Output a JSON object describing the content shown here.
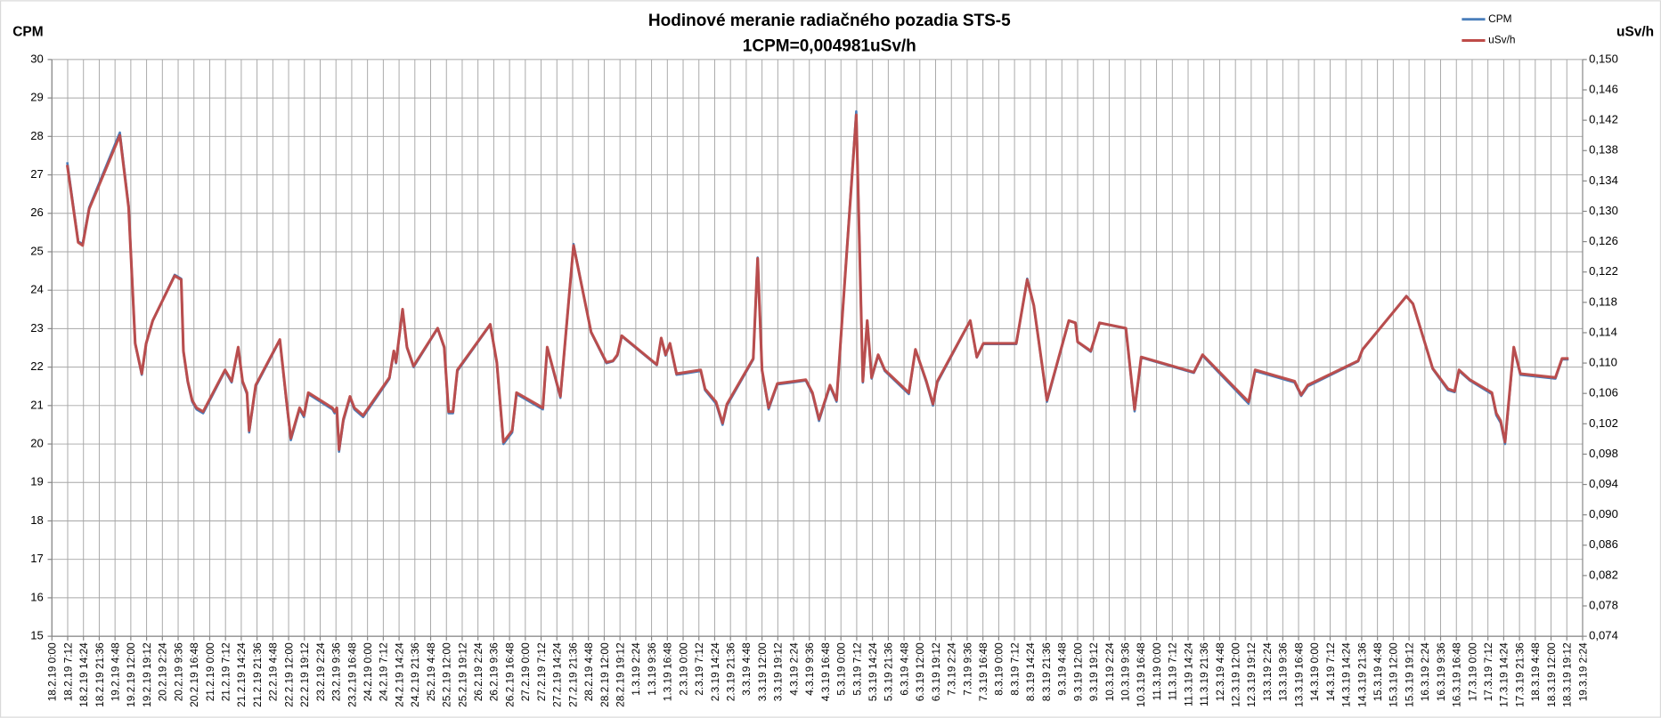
{
  "chart_data": {
    "type": "line",
    "title": "Hodinové meranie radiačného pozadia STS-5",
    "subtitle": "1CPM=0,004981uSv/h",
    "y_label": "CPM",
    "y2_label": "uSv/h",
    "legend": "top-right",
    "grid": true,
    "xlim": [
      "18.2.19 0:00",
      "19.3.19 2:24"
    ],
    "xticks": [
      "18.2.19 0:00",
      "18.2.19 7:12",
      "18.2.19 14:24",
      "18.2.19 21:36",
      "19.2.19 4:48",
      "19.2.19 12:00",
      "19.2.19 19:12",
      "20.2.19 2:24",
      "20.2.19 9:36",
      "20.2.19 16:48",
      "21.2.19 0:00",
      "21.2.19 7:12",
      "21.2.19 14:24",
      "21.2.19 21:36",
      "22.2.19 4:48",
      "22.2.19 12:00",
      "22.2.19 19:12",
      "23.2.19 2:24",
      "23.2.19 9:36",
      "23.2.19 16:48",
      "24.2.19 0:00",
      "24.2.19 7:12",
      "24.2.19 14:24",
      "24.2.19 21:36",
      "25.2.19 4:48",
      "25.2.19 12:00",
      "25.2.19 19:12",
      "26.2.19 2:24",
      "26.2.19 9:36",
      "26.2.19 16:48",
      "27.2.19 0:00",
      "27.2.19 7:12",
      "27.2.19 14:24",
      "27.2.19 21:36",
      "28.2.19 4:48",
      "28.2.19 12:00",
      "28.2.19 19:12",
      "1.3.19 2:24",
      "1.3.19 9:36",
      "1.3.19 16:48",
      "2.3.19 0:00",
      "2.3.19 7:12",
      "2.3.19 14:24",
      "2.3.19 21:36",
      "3.3.19 4:48",
      "3.3.19 12:00",
      "3.3.19 19:12",
      "4.3.19 2:24",
      "4.3.19 9:36",
      "4.3.19 16:48",
      "5.3.19 0:00",
      "5.3.19 7:12",
      "5.3.19 14:24",
      "5.3.19 21:36",
      "6.3.19 4:48",
      "6.3.19 12:00",
      "6.3.19 19:12",
      "7.3.19 2:24",
      "7.3.19 9:36",
      "7.3.19 16:48",
      "8.3.19 0:00",
      "8.3.19 7:12",
      "8.3.19 14:24",
      "8.3.19 21:36",
      "9.3.19 4:48",
      "9.3.19 12:00",
      "9.3.19 19:12",
      "10.3.19 2:24",
      "10.3.19 9:36",
      "10.3.19 16:48",
      "11.3.19 0:00",
      "11.3.19 7:12",
      "11.3.19 14:24",
      "11.3.19 21:36",
      "12.3.19 4:48",
      "12.3.19 12:00",
      "12.3.19 19:12",
      "13.3.19 2:24",
      "13.3.19 9:36",
      "13.3.19 16:48",
      "14.3.19 0:00",
      "14.3.19 7:12",
      "14.3.19 14:24",
      "14.3.19 21:36",
      "15.3.19 4:48",
      "15.3.19 12:00",
      "15.3.19 19:12",
      "16.3.19 2:24",
      "16.3.19 9:36",
      "16.3.19 16:48",
      "17.3.19 0:00",
      "17.3.19 7:12",
      "17.3.19 14:24",
      "17.3.19 21:36",
      "18.3.19 4:48",
      "18.3.19 12:00",
      "18.3.19 19:12",
      "19.3.19 2:24"
    ],
    "ylim": [
      15,
      30
    ],
    "yticks": [
      15,
      16,
      17,
      18,
      19,
      20,
      21,
      22,
      23,
      24,
      25,
      26,
      27,
      28,
      29,
      30
    ],
    "y2lim": [
      0.074,
      0.15
    ],
    "y2ticks": [
      {
        "value": 0.074,
        "label": "0,074"
      },
      {
        "value": 0.078,
        "label": "0,078"
      },
      {
        "value": 0.082,
        "label": "0,082"
      },
      {
        "value": 0.086,
        "label": "0,086"
      },
      {
        "value": 0.09,
        "label": "0,090"
      },
      {
        "value": 0.094,
        "label": "0,094"
      },
      {
        "value": 0.098,
        "label": "0,098"
      },
      {
        "value": 0.102,
        "label": "0,102"
      },
      {
        "value": 0.106,
        "label": "0,106"
      },
      {
        "value": 0.11,
        "label": "0,110"
      },
      {
        "value": 0.114,
        "label": "0,114"
      },
      {
        "value": 0.118,
        "label": "0,118"
      },
      {
        "value": 0.122,
        "label": "0,122"
      },
      {
        "value": 0.126,
        "label": "0,126"
      },
      {
        "value": 0.13,
        "label": "0,130"
      },
      {
        "value": 0.134,
        "label": "0,134"
      },
      {
        "value": 0.138,
        "label": "0,138"
      },
      {
        "value": 0.142,
        "label": "0,142"
      },
      {
        "value": 0.146,
        "label": "0,146"
      },
      {
        "value": 0.15,
        "label": "0,150"
      }
    ],
    "x": [
      "18.2.19 7:00",
      "18.2.19 12:00",
      "18.2.19 14:00",
      "18.2.19 17:00",
      "19.2.19 7:00",
      "19.2.19 11:00",
      "19.2.19 14:00",
      "19.2.19 17:00",
      "19.2.19 19:00",
      "19.2.19 22:00",
      "20.2.19 8:00",
      "20.2.19 11:00",
      "20.2.19 12:00",
      "20.2.19 14:00",
      "20.2.19 16:00",
      "20.2.19 18:00",
      "20.2.19 21:00",
      "21.2.19 7:00",
      "21.2.19 10:00",
      "21.2.19 13:00",
      "21.2.19 15:00",
      "21.2.19 17:00",
      "21.2.19 18:00",
      "21.2.19 21:00",
      "22.2.19 8:00",
      "22.2.19 11:00",
      "22.2.19 13:00",
      "22.2.19 17:00",
      "22.2.19 19:00",
      "22.2.19 21:00",
      "23.2.19 8:00",
      "23.2.19 9:00",
      "23.2.19 10:00",
      "23.2.19 11:00",
      "23.2.19 13:00",
      "23.2.19 16:00",
      "23.2.19 18:00",
      "23.2.19 22:00",
      "24.2.19 10:00",
      "24.2.19 12:00",
      "24.2.19 13:00",
      "24.2.19 16:00",
      "24.2.19 18:00",
      "24.2.19 21:00",
      "25.2.19 8:00",
      "25.2.19 11:00",
      "25.2.19 13:00",
      "25.2.19 15:00",
      "25.2.19 17:00",
      "26.2.19 8:00",
      "26.2.19 11:00",
      "26.2.19 14:00",
      "26.2.19 18:00",
      "26.2.19 20:00",
      "27.2.19 8:00",
      "27.2.19 10:00",
      "27.2.19 16:00",
      "27.2.19 22:00",
      "28.2.19 6:00",
      "28.2.19 13:00",
      "28.2.19 16:00",
      "28.2.19 18:00",
      "28.2.19 20:00",
      "1.3.19 12:00",
      "1.3.19 14:00",
      "1.3.19 16:00",
      "1.3.19 18:00",
      "1.3.19 21:00",
      "2.3.19 8:00",
      "2.3.19 10:00",
      "2.3.19 15:00",
      "2.3.19 18:00",
      "2.3.19 20:00",
      "3.3.19 8:00",
      "3.3.19 10:00",
      "3.3.19 12:00",
      "3.3.19 15:00",
      "3.3.19 19:00",
      "4.3.19 8:00",
      "4.3.19 11:00",
      "4.3.19 14:00",
      "4.3.19 19:00",
      "4.3.19 22:00",
      "5.3.19 7:00",
      "5.3.19 10:00",
      "5.3.19 12:00",
      "5.3.19 14:00",
      "5.3.19 17:00",
      "5.3.19 20:00",
      "6.3.19 7:00",
      "6.3.19 10:00",
      "6.3.19 15:00",
      "6.3.19 18:00",
      "6.3.19 20:00",
      "7.3.19 11:00",
      "7.3.19 14:00",
      "7.3.19 17:00",
      "8.3.19 8:00",
      "8.3.19 13:00",
      "8.3.19 16:00",
      "8.3.19 20:00",
      "8.3.19 22:00",
      "9.3.19 8:00",
      "9.3.19 11:00",
      "9.3.19 12:00",
      "9.3.19 18:00",
      "9.3.19 22:00",
      "10.3.19 10:00",
      "10.3.19 14:00",
      "10.3.19 17:00",
      "11.3.19 17:00",
      "11.3.19 21:00",
      "12.3.19 18:00",
      "12.3.19 21:00",
      "13.3.19 15:00",
      "13.3.19 18:00",
      "13.3.19 21:00",
      "14.3.19 20:00",
      "14.3.19 22:00",
      "15.3.19 18:00",
      "15.3.19 21:00",
      "16.3.19 6:00",
      "16.3.19 13:00",
      "16.3.19 16:00",
      "16.3.19 18:00",
      "16.3.19 23:00",
      "17.3.19 9:00",
      "17.3.19 11:00",
      "17.3.19 13:00",
      "17.3.19 15:00",
      "17.3.19 19:00",
      "17.3.19 22:00",
      "18.3.19 14:00",
      "18.3.19 17:00",
      "18.3.19 20:00"
    ],
    "series": [
      {
        "name": "CPM",
        "color": "#4a7ebb",
        "values": [
          27.33,
          25.27,
          25.2,
          26.15,
          28.1,
          26.2,
          22.6,
          21.8,
          22.6,
          23.2,
          24.4,
          24.3,
          22.4,
          21.6,
          21.1,
          20.9,
          20.8,
          21.9,
          21.6,
          22.5,
          21.6,
          21.3,
          20.3,
          21.5,
          22.7,
          21.1,
          20.1,
          20.9,
          20.7,
          21.3,
          20.9,
          20.8,
          20.9,
          19.8,
          20.6,
          21.2,
          20.9,
          20.7,
          21.7,
          22.4,
          22.1,
          23.5,
          22.5,
          22.0,
          23.0,
          22.5,
          20.8,
          20.8,
          21.9,
          23.1,
          22.1,
          20.0,
          20.3,
          21.3,
          20.9,
          22.5,
          21.2,
          25.2,
          22.9,
          22.1,
          22.15,
          22.3,
          22.8,
          22.05,
          22.75,
          22.3,
          22.6,
          21.8,
          21.9,
          21.4,
          21.05,
          20.5,
          21.0,
          22.2,
          24.85,
          21.9,
          20.9,
          21.55,
          21.65,
          21.3,
          20.6,
          21.5,
          21.1,
          28.65,
          21.6,
          23.2,
          21.7,
          22.3,
          21.9,
          21.3,
          22.45,
          21.6,
          21.0,
          21.6,
          23.2,
          22.25,
          22.6,
          22.6,
          24.3,
          23.6,
          21.95,
          21.1,
          23.2,
          23.15,
          22.65,
          22.4,
          23.15,
          23.0,
          20.85,
          22.25,
          21.85,
          22.3,
          21.05,
          21.9,
          21.6,
          21.25,
          21.5,
          22.15,
          22.45,
          23.85,
          23.65,
          21.95,
          21.4,
          21.35,
          21.9,
          21.65,
          21.3,
          20.75,
          20.55,
          20.0,
          22.5,
          21.8,
          21.7,
          22.2,
          22.2
        ]
      },
      {
        "name": "uSv/h",
        "color": "#be4b48",
        "axis": "y2",
        "values": [
          0.1361,
          0.1259,
          0.1255,
          0.1303,
          0.14,
          0.1305,
          0.1126,
          0.1086,
          0.1126,
          0.1156,
          0.1215,
          0.121,
          0.1116,
          0.1076,
          0.1051,
          0.1041,
          0.1036,
          0.1091,
          0.1076,
          0.1121,
          0.1076,
          0.1061,
          0.1011,
          0.1071,
          0.1131,
          0.1051,
          0.1001,
          0.1041,
          0.1031,
          0.1061,
          0.1041,
          0.1036,
          0.1041,
          0.0986,
          0.1026,
          0.1056,
          0.1041,
          0.1031,
          0.1081,
          0.1116,
          0.1101,
          0.1171,
          0.1121,
          0.1096,
          0.1146,
          0.1121,
          0.1036,
          0.1036,
          0.1091,
          0.1151,
          0.1101,
          0.0996,
          0.1011,
          0.1061,
          0.1041,
          0.1121,
          0.1056,
          0.1255,
          0.1141,
          0.1101,
          0.1103,
          0.1111,
          0.1136,
          0.1098,
          0.1133,
          0.1111,
          0.1126,
          0.1086,
          0.1091,
          0.1066,
          0.1049,
          0.1021,
          0.1046,
          0.1106,
          0.1238,
          0.1091,
          0.1041,
          0.1073,
          0.1078,
          0.1061,
          0.1026,
          0.1071,
          0.1051,
          0.1427,
          0.1076,
          0.1156,
          0.1081,
          0.1111,
          0.1091,
          0.1061,
          0.1118,
          0.1076,
          0.1046,
          0.1076,
          0.1156,
          0.1108,
          0.1126,
          0.1126,
          0.121,
          0.1176,
          0.1093,
          0.1051,
          0.1156,
          0.1153,
          0.1128,
          0.1116,
          0.1153,
          0.1146,
          0.1039,
          0.1108,
          0.1088,
          0.1111,
          0.1049,
          0.1091,
          0.1076,
          0.1058,
          0.1071,
          0.1103,
          0.1118,
          0.1188,
          0.1178,
          0.1093,
          0.1066,
          0.1063,
          0.1091,
          0.1078,
          0.1061,
          0.1034,
          0.1024,
          0.0996,
          0.1121,
          0.1086,
          0.1081,
          0.1106,
          0.1106
        ]
      }
    ]
  }
}
